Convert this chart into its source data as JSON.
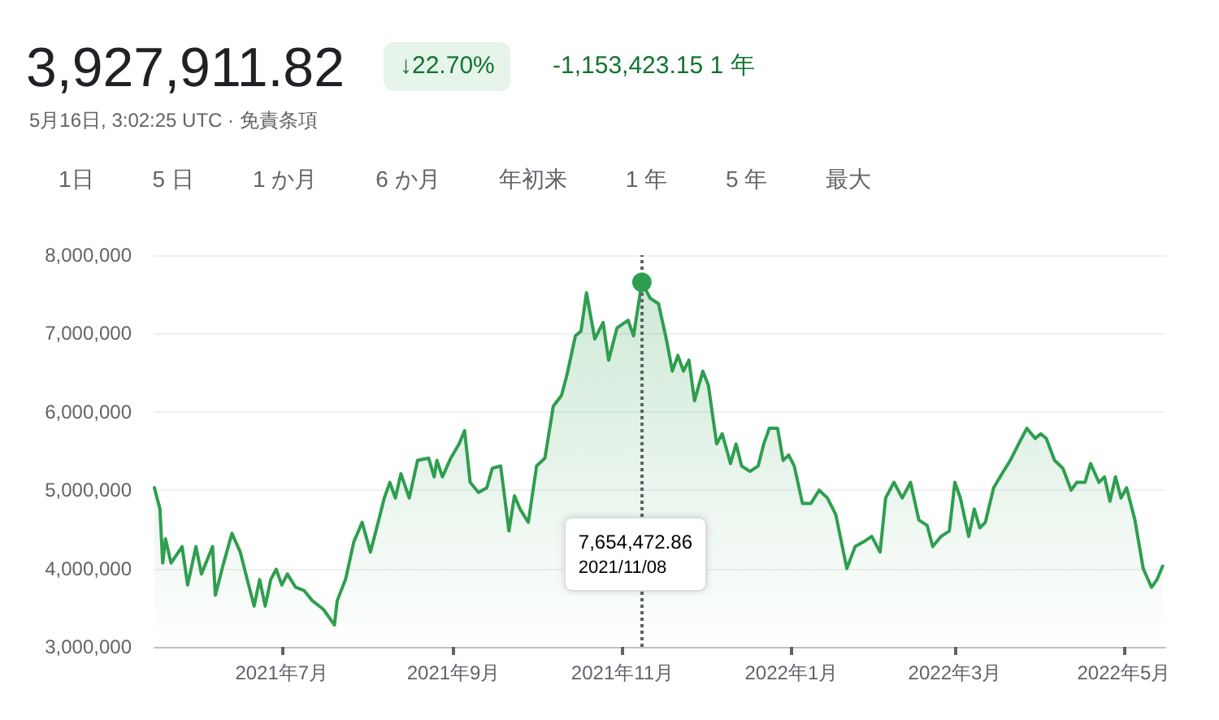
{
  "chart_data": {
    "type": "area",
    "title": "3,927,911.82",
    "annotations": [
      "↓22.70%",
      "-1,153,423.15 1 年",
      "5月16日, 3:02:25 UTC · 免責条項",
      "1日",
      "5 日",
      "1 か月",
      "6 か月",
      "年初来",
      "1 年",
      "5 年",
      "最大"
    ],
    "x": [
      "2021-05-16",
      "2021-05-18",
      "2021-05-19",
      "2021-05-20",
      "2021-05-22",
      "2021-05-26",
      "2021-05-28",
      "2021-05-31",
      "2021-06-02",
      "2021-06-06",
      "2021-06-07",
      "2021-06-10",
      "2021-06-13",
      "2021-06-16",
      "2021-06-18",
      "2021-06-21",
      "2021-06-23",
      "2021-06-25",
      "2021-06-27",
      "2021-06-29",
      "2021-07-01",
      "2021-07-03",
      "2021-07-06",
      "2021-07-09",
      "2021-07-12",
      "2021-07-16",
      "2021-07-20",
      "2021-07-21",
      "2021-07-24",
      "2021-07-27",
      "2021-07-30",
      "2021-08-02",
      "2021-08-05",
      "2021-08-07",
      "2021-08-09",
      "2021-08-11",
      "2021-08-13",
      "2021-08-16",
      "2021-08-19",
      "2021-08-23",
      "2021-08-25",
      "2021-08-26",
      "2021-08-28",
      "2021-08-31",
      "2021-09-03",
      "2021-09-05",
      "2021-09-07",
      "2021-09-10",
      "2021-09-13",
      "2021-09-15",
      "2021-09-18",
      "2021-09-21",
      "2021-09-23",
      "2021-09-25",
      "2021-09-28",
      "2021-10-01",
      "2021-10-04",
      "2021-10-07",
      "2021-10-10",
      "2021-10-12",
      "2021-10-15",
      "2021-10-17",
      "2021-10-19",
      "2021-10-22",
      "2021-10-25",
      "2021-10-27",
      "2021-10-30",
      "2021-11-03",
      "2021-11-05",
      "2021-11-08",
      "2021-11-11",
      "2021-11-14",
      "2021-11-17",
      "2021-11-19",
      "2021-11-21",
      "2021-11-23",
      "2021-11-25",
      "2021-11-27",
      "2021-11-30",
      "2021-12-02",
      "2021-12-05",
      "2021-12-07",
      "2021-12-10",
      "2021-12-12",
      "2021-12-14",
      "2021-12-17",
      "2021-12-20",
      "2021-12-22",
      "2021-12-24",
      "2021-12-27",
      "2021-12-29",
      "2021-12-31",
      "2022-01-02",
      "2022-01-05",
      "2022-01-08",
      "2022-01-11",
      "2022-01-14",
      "2022-01-17",
      "2022-01-21",
      "2022-01-24",
      "2022-01-27",
      "2022-01-30",
      "2022-02-02",
      "2022-02-04",
      "2022-02-07",
      "2022-02-10",
      "2022-02-13",
      "2022-02-16",
      "2022-02-19",
      "2022-02-21",
      "2022-02-24",
      "2022-02-27",
      "2022-03-01",
      "2022-03-03",
      "2022-03-06",
      "2022-03-08",
      "2022-03-10",
      "2022-03-12",
      "2022-03-15",
      "2022-03-18",
      "2022-03-21",
      "2022-03-24",
      "2022-03-27",
      "2022-03-30",
      "2022-04-01",
      "2022-04-03",
      "2022-04-06",
      "2022-04-09",
      "2022-04-12",
      "2022-04-14",
      "2022-04-17",
      "2022-04-19",
      "2022-04-22",
      "2022-04-24",
      "2022-04-26",
      "2022-04-28",
      "2022-04-30",
      "2022-05-02",
      "2022-05-05",
      "2022-05-08",
      "2022-05-11",
      "2022-05-13",
      "2022-05-15"
    ],
    "values": [
      5030000,
      4760000,
      4070000,
      4380000,
      4070000,
      4280000,
      3790000,
      4280000,
      3930000,
      4280000,
      3660000,
      4070000,
      4450000,
      4210000,
      3930000,
      3520000,
      3860000,
      3520000,
      3860000,
      3990000,
      3790000,
      3930000,
      3760000,
      3720000,
      3590000,
      3480000,
      3280000,
      3590000,
      3860000,
      4340000,
      4590000,
      4210000,
      4620000,
      4900000,
      5100000,
      4900000,
      5210000,
      4900000,
      5380000,
      5410000,
      5170000,
      5380000,
      5170000,
      5410000,
      5590000,
      5760000,
      5100000,
      4970000,
      5030000,
      5280000,
      5310000,
      4480000,
      4930000,
      4760000,
      4590000,
      5310000,
      5410000,
      6070000,
      6210000,
      6480000,
      6970000,
      7030000,
      7520000,
      6930000,
      7140000,
      6660000,
      7070000,
      7170000,
      6970000,
      7654472.86,
      7450000,
      7380000,
      6900000,
      6520000,
      6720000,
      6520000,
      6660000,
      6140000,
      6520000,
      6340000,
      5590000,
      5720000,
      5340000,
      5590000,
      5310000,
      5240000,
      5310000,
      5590000,
      5790000,
      5790000,
      5380000,
      5450000,
      5310000,
      4830000,
      4830000,
      5000000,
      4900000,
      4690000,
      4000000,
      4280000,
      4340000,
      4410000,
      4210000,
      4900000,
      5100000,
      4900000,
      5100000,
      4620000,
      4550000,
      4280000,
      4410000,
      4480000,
      5100000,
      4900000,
      4410000,
      4760000,
      4520000,
      4590000,
      5030000,
      5210000,
      5380000,
      5590000,
      5790000,
      5660000,
      5720000,
      5660000,
      5380000,
      5280000,
      5000000,
      5100000,
      5100000,
      5340000,
      5100000,
      5170000,
      4860000,
      5170000,
      4900000,
      5030000,
      4620000,
      4000000,
      3760000,
      3860000,
      4030000
    ],
    "color": "#2e9e4f",
    "xlim": [
      "2021-05-16",
      "2022-05-16"
    ],
    "xticks": [
      {
        "value": "2021-07-01",
        "label": "2021年7月"
      },
      {
        "value": "2021-09-01",
        "label": "2021年9月"
      },
      {
        "value": "2021-11-01",
        "label": "2021年11月"
      },
      {
        "value": "2022-01-01",
        "label": "2022年1月"
      },
      {
        "value": "2022-03-01",
        "label": "2022年3月"
      },
      {
        "value": "2022-05-01",
        "label": "2022年5月"
      }
    ],
    "ylim": [
      3000000,
      8000000
    ],
    "yticks": [
      {
        "value": 3000000,
        "label": "3,000,000"
      },
      {
        "value": 4000000,
        "label": "4,000,000"
      },
      {
        "value": 5000000,
        "label": "5,000,000"
      },
      {
        "value": 6000000,
        "label": "6,000,000"
      },
      {
        "value": 7000000,
        "label": "7,000,000"
      },
      {
        "value": 8000000,
        "label": "8,000,000"
      }
    ],
    "grid": "y",
    "ref_lines": [
      {
        "axis": "x",
        "value": "2021-11-08",
        "label": "7,654,472.86\n2021/11/08",
        "line_style": "dotted",
        "color": "#5f6368"
      }
    ]
  }
}
